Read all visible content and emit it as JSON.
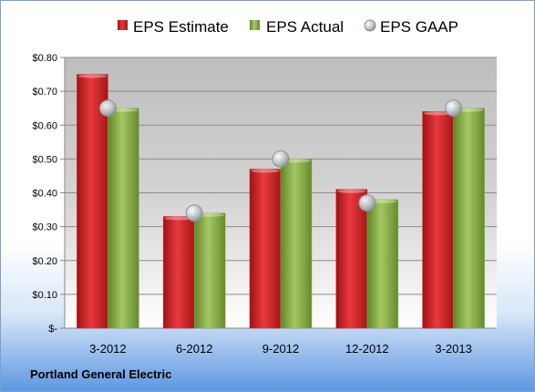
{
  "company": "Portland General Electric",
  "colors": {
    "estimate": "#d9262a",
    "actual": "#8db44a",
    "gaap": "#bfc4c9"
  },
  "chart_data": {
    "type": "bar",
    "categories": [
      "3-2012",
      "6-2012",
      "9-2012",
      "12-2012",
      "3-2013"
    ],
    "series": [
      {
        "name": "EPS Estimate",
        "type": "bar",
        "values": [
          0.75,
          0.33,
          0.47,
          0.41,
          0.64
        ]
      },
      {
        "name": "EPS Actual",
        "type": "bar",
        "values": [
          0.65,
          0.34,
          0.5,
          0.38,
          0.65
        ]
      },
      {
        "name": "EPS GAAP",
        "type": "scatter",
        "values": [
          0.65,
          0.34,
          0.5,
          0.37,
          0.65
        ]
      }
    ],
    "y_ticks": [
      "$-",
      "$0.10",
      "$0.20",
      "$0.30",
      "$0.40",
      "$0.50",
      "$0.60",
      "$0.70",
      "$0.80"
    ],
    "ylim": [
      0,
      0.8
    ],
    "grid": true,
    "legend_position": "top"
  }
}
